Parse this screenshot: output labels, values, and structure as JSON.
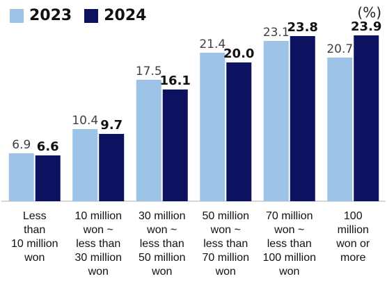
{
  "chart_data": {
    "type": "bar",
    "unit": "(%)",
    "categories": [
      [
        "Less",
        "than",
        "10 million",
        "won"
      ],
      [
        "10 million",
        "won ~",
        "less than",
        "30 million",
        "won"
      ],
      [
        "30 million",
        "won ~",
        "less than",
        "50 million",
        "won"
      ],
      [
        "50 million",
        "won ~",
        "less than",
        "70 million",
        "won"
      ],
      [
        "70 million",
        "won ~",
        "less than",
        "100 million",
        "won"
      ],
      [
        "100",
        "million",
        "won or",
        "more"
      ]
    ],
    "series": [
      {
        "name": "2023",
        "color": "#9dc3e6",
        "values": [
          6.9,
          10.4,
          17.5,
          21.4,
          23.1,
          20.7
        ],
        "value_labels": [
          "6.9",
          "10.4",
          "17.5",
          "21.4",
          "23.1",
          "20.7"
        ]
      },
      {
        "name": "2024",
        "color": "#0c1260",
        "values": [
          6.6,
          9.7,
          16.1,
          20.0,
          23.8,
          23.9
        ],
        "value_labels": [
          "6.6",
          "9.7",
          "16.1",
          "20.0",
          "23.8",
          "23.9"
        ]
      }
    ],
    "ylim": [
      0,
      25
    ],
    "grid": false,
    "legend": "top-left"
  }
}
